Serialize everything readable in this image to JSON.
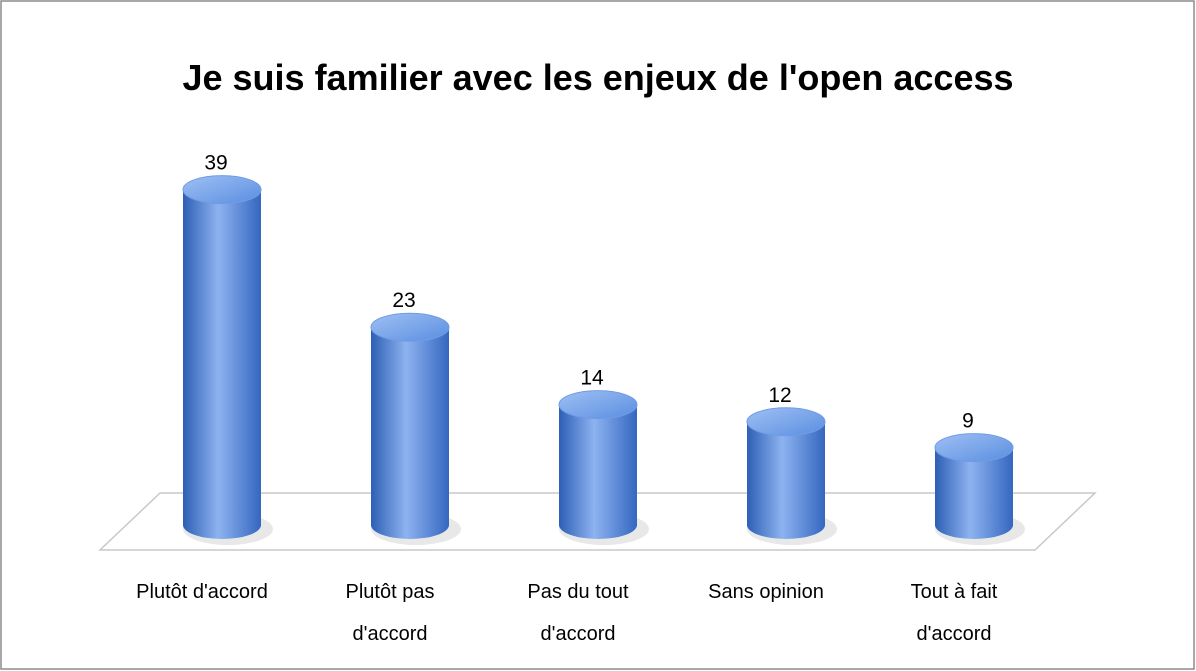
{
  "chart_data": {
    "type": "cylinder-bar",
    "title": "Je suis familier avec les enjeux de l'open access",
    "categories": [
      "Plutôt d'accord",
      "Plutôt pas d'accord",
      "Pas du tout d'accord",
      "Sans opinion",
      "Tout à fait d'accord"
    ],
    "values": [
      39,
      23,
      14,
      12,
      9
    ],
    "color": "#4a7fd6"
  }
}
